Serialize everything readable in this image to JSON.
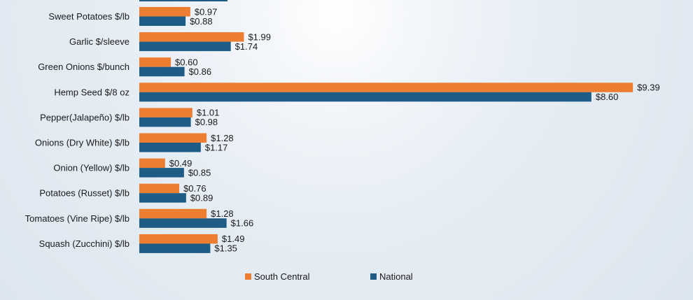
{
  "chart_data": {
    "type": "bar",
    "orientation": "horizontal",
    "categories": [
      "Sweet Potatoes $/lb",
      "Garlic $/sleeve",
      "Green Onions $/bunch",
      "Hemp Seed $/8 oz",
      "Pepper(Jalapeño) $/lb",
      "Onions (Dry White) $/lb",
      "Onion (Yellow) $/lb",
      "Potatoes (Russet) $/lb",
      "Tomatoes (Vine Ripe) $/lb",
      "Squash (Zucchini) $/lb"
    ],
    "series": [
      {
        "name": "South Central",
        "color": "#ED7D31",
        "values": [
          0.97,
          1.99,
          0.6,
          9.39,
          1.01,
          1.28,
          0.49,
          0.76,
          1.28,
          1.49
        ],
        "labels": [
          "$0.97",
          "$1.99",
          "$0.60",
          "$9.39",
          "$1.01",
          "$1.28",
          "$0.49",
          "$0.76",
          "$1.28",
          "$1.49"
        ]
      },
      {
        "name": "National",
        "color": "#1F5C85",
        "values": [
          0.88,
          1.74,
          0.86,
          8.6,
          0.98,
          1.17,
          0.85,
          0.89,
          1.66,
          1.35
        ],
        "labels": [
          "$0.88",
          "$1.74",
          "$0.86",
          "$8.60",
          "$0.98",
          "$1.17",
          "$0.85",
          "$0.89",
          "$1.66",
          "$1.35"
        ]
      }
    ],
    "xlim": [
      0,
      10
    ],
    "grid": false,
    "legend": "bottom"
  }
}
